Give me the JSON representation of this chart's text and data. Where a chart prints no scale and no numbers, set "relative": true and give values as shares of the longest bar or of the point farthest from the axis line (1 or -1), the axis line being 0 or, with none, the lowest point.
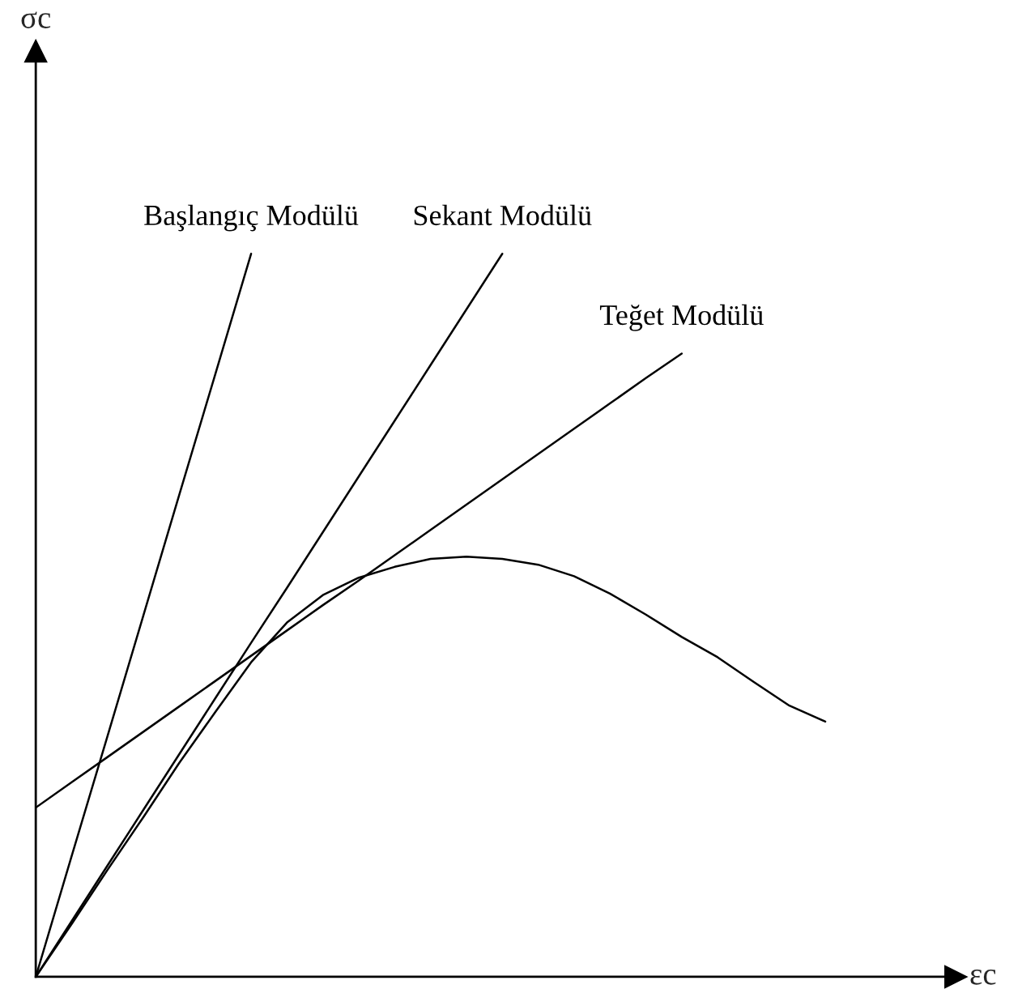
{
  "chart_data": {
    "type": "line",
    "relative": true,
    "xlabel": "εc",
    "annotations": [
      "σc"
    ],
    "legend": false,
    "marker": "none",
    "line_style": "solid",
    "categories": [
      null,
      null,
      null,
      null,
      null,
      null,
      null,
      null,
      null,
      null,
      null,
      null,
      null,
      null,
      null,
      null,
      null,
      null,
      null,
      null,
      null,
      null,
      null
    ],
    "series": [
      {
        "color": "#000000",
        "values": [
          0,
          0.073,
          0.148,
          0.221,
          0.296,
          0.366,
          0.435,
          0.49,
          0.528,
          0.552,
          0.567,
          0.578,
          0.581,
          0.578,
          0.57,
          0.554,
          0.53,
          0.501,
          0.47,
          0.442,
          0.408,
          0.375,
          0.353
        ]
      },
      {
        "name": "Başlangıç Modülü",
        "color": "#000000",
        "values": [
          0,
          0.167,
          0.333,
          0.5,
          0.667,
          0.833,
          1.0,
          null,
          null,
          null,
          null,
          null,
          null,
          null,
          null,
          null,
          null,
          null,
          null,
          null,
          null,
          null,
          null
        ]
      },
      {
        "name": "Sekant Modülü",
        "color": "#000000",
        "values": [
          0,
          0.077,
          0.154,
          0.231,
          0.308,
          0.385,
          0.462,
          0.538,
          0.615,
          0.692,
          0.769,
          0.846,
          0.923,
          1.0,
          null,
          null,
          null,
          null,
          null,
          null,
          null,
          null,
          null
        ]
      },
      {
        "name": "Teğet Modülü",
        "color": "#000000",
        "values": [
          0.234,
          0.269,
          0.304,
          0.339,
          0.374,
          0.409,
          0.444,
          0.479,
          0.514,
          0.548,
          0.583,
          0.618,
          0.653,
          0.688,
          0.723,
          0.758,
          0.793,
          0.828,
          0.862,
          null,
          null,
          null,
          null
        ]
      }
    ]
  }
}
